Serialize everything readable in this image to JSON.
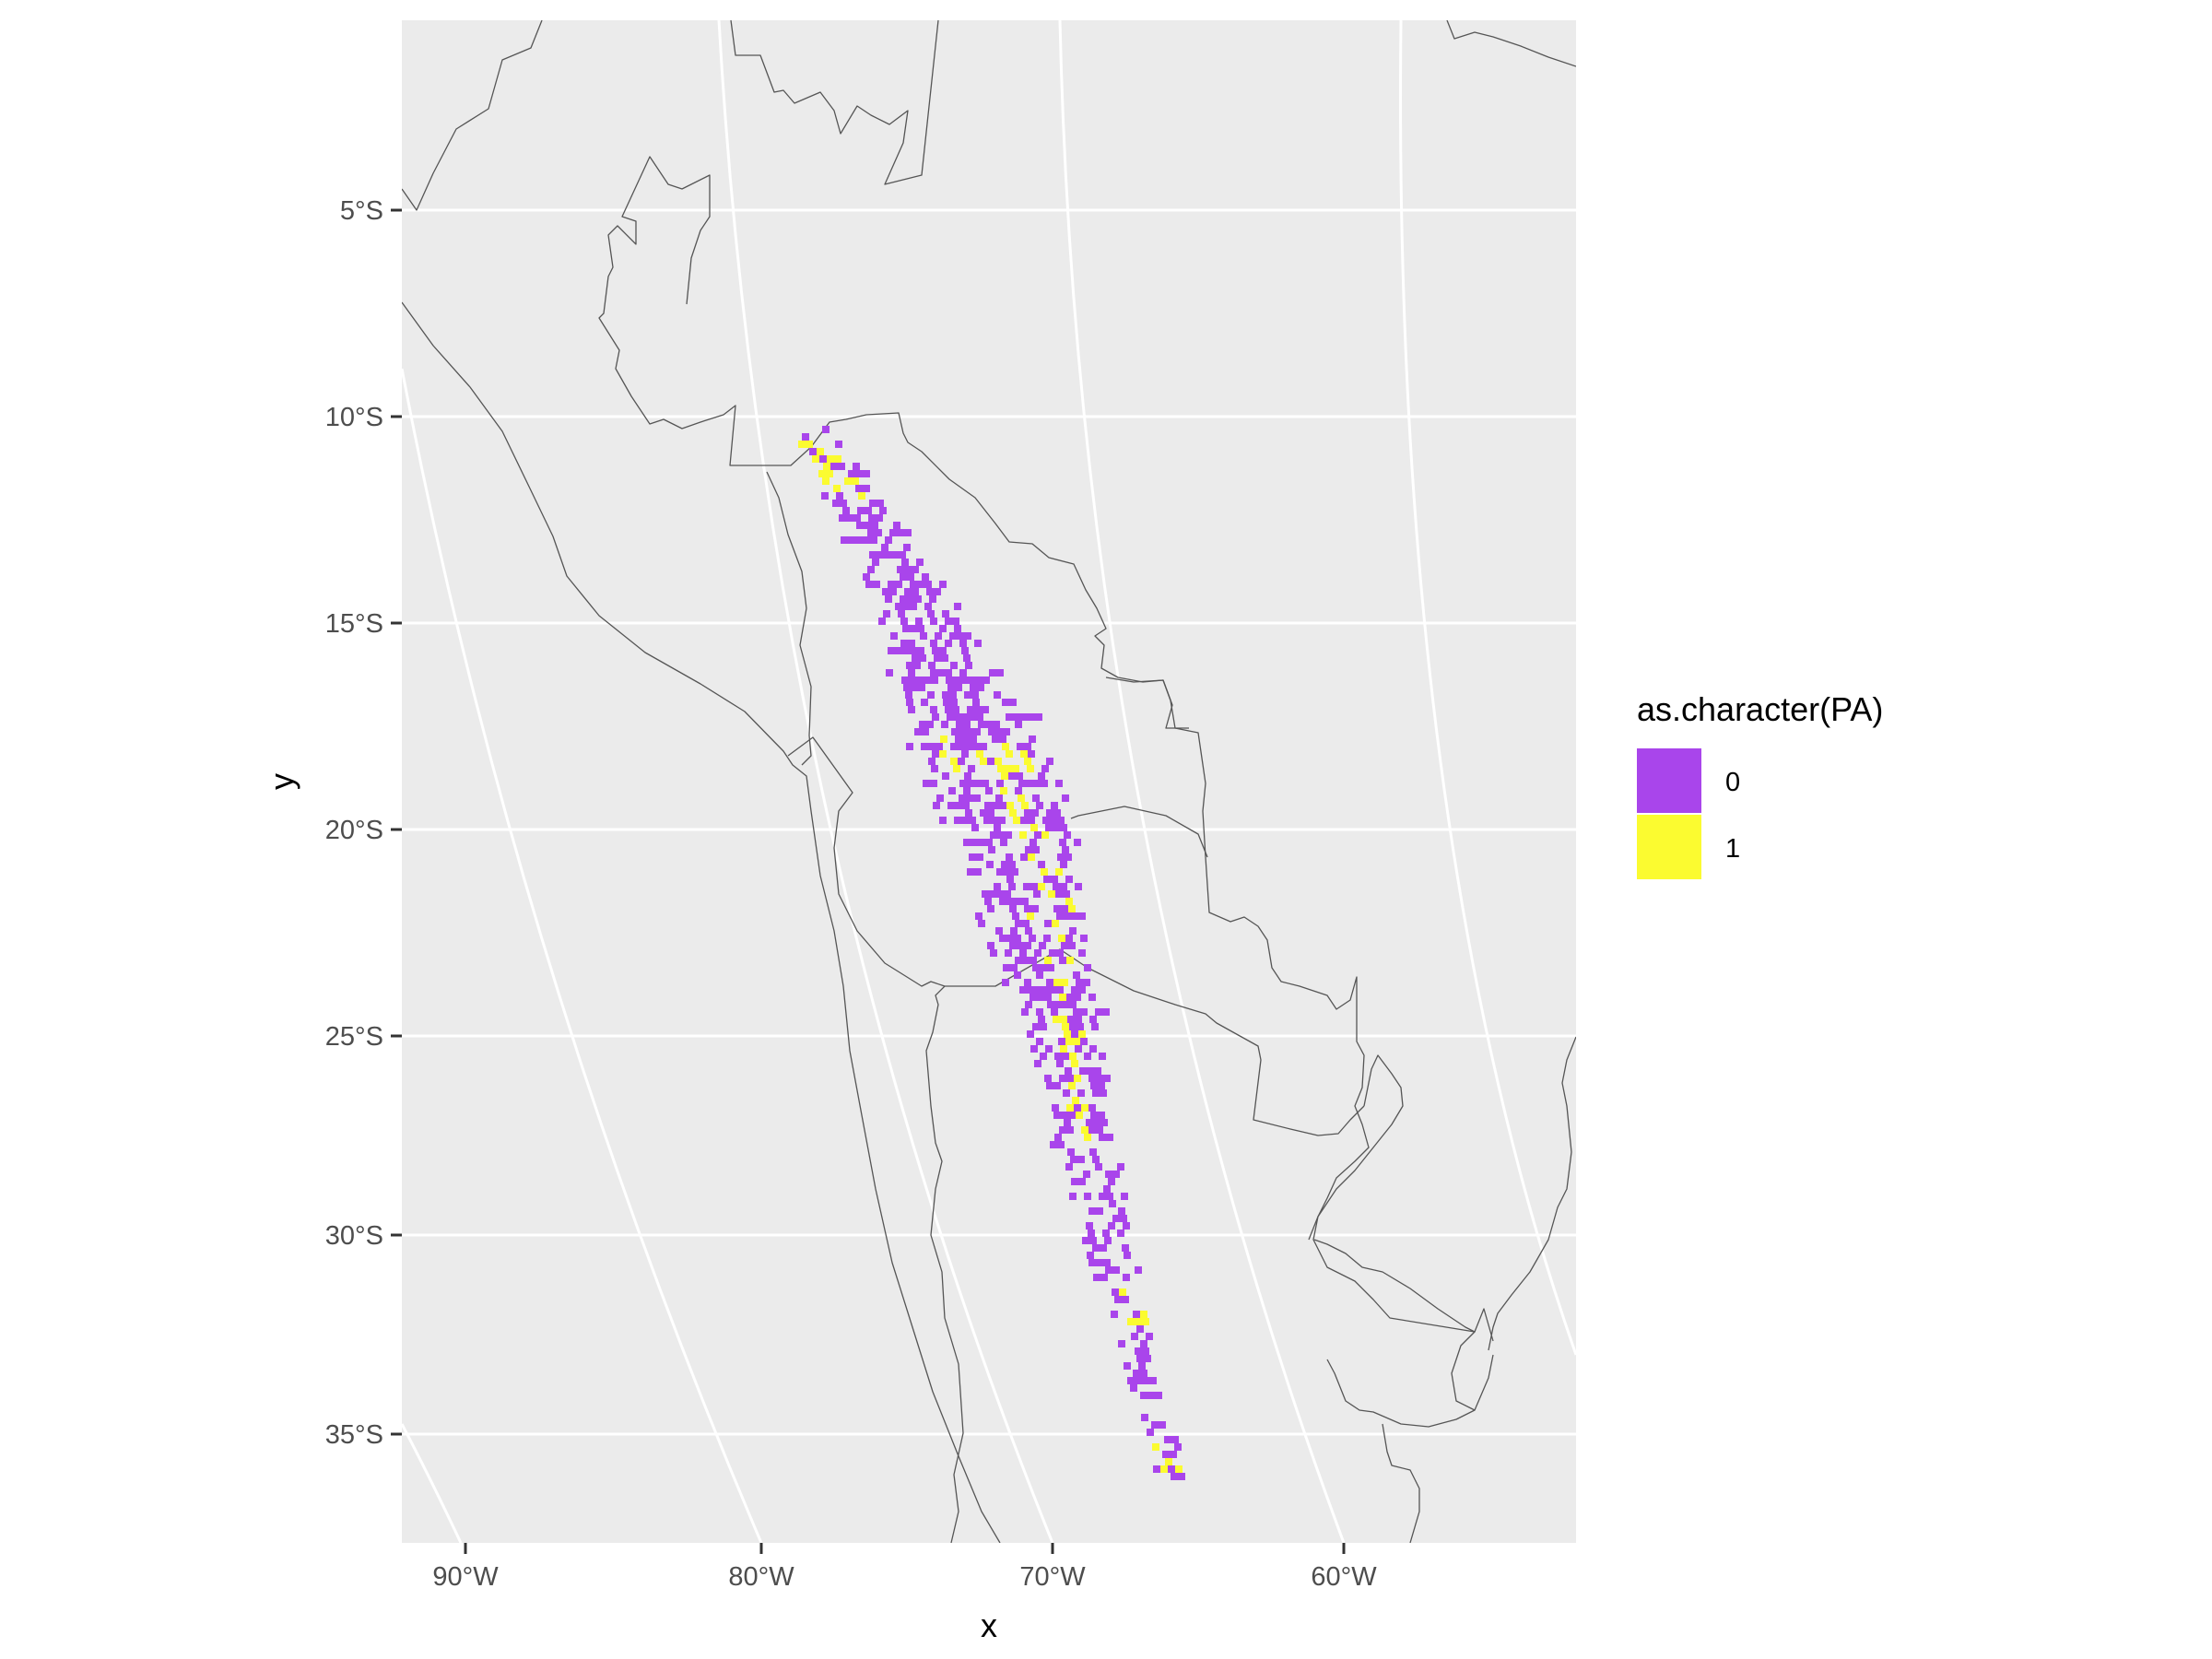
{
  "chart_data": {
    "type": "raster map",
    "xlabel": "x",
    "ylabel": "y",
    "projection": "curved meridians (conic-style), straight horizontal parallels",
    "x_ticks": [
      "90°W",
      "80°W",
      "70°W",
      "60°W"
    ],
    "y_ticks": [
      "5°S",
      "10°S",
      "15°S",
      "20°S",
      "25°S",
      "30°S",
      "35°S"
    ],
    "lon_range": [
      -92,
      -52
    ],
    "lat_range": [
      -37.5,
      -0.5
    ],
    "grid": true,
    "legend": {
      "title": "as.character(PA)",
      "placement": "right",
      "items": [
        {
          "label": "0",
          "color": "#A945EB"
        },
        {
          "label": "1",
          "color": "#FBFB30"
        }
      ]
    },
    "presence_absence_description": "Narrow diagonal band along the Andes from about 10°S to 36°S; value 0 (purple) dominates, value 1 (yellow) patches at the northern tip (~11°S), central Andes (~18–28°S) and southern section (~31–36°S)"
  },
  "colors": {
    "panel_background": "#EBEBEB",
    "grid_line": "#FFFFFF",
    "border_line": "#555555",
    "absence": "#A945EB",
    "presence": "#FBFB30"
  }
}
